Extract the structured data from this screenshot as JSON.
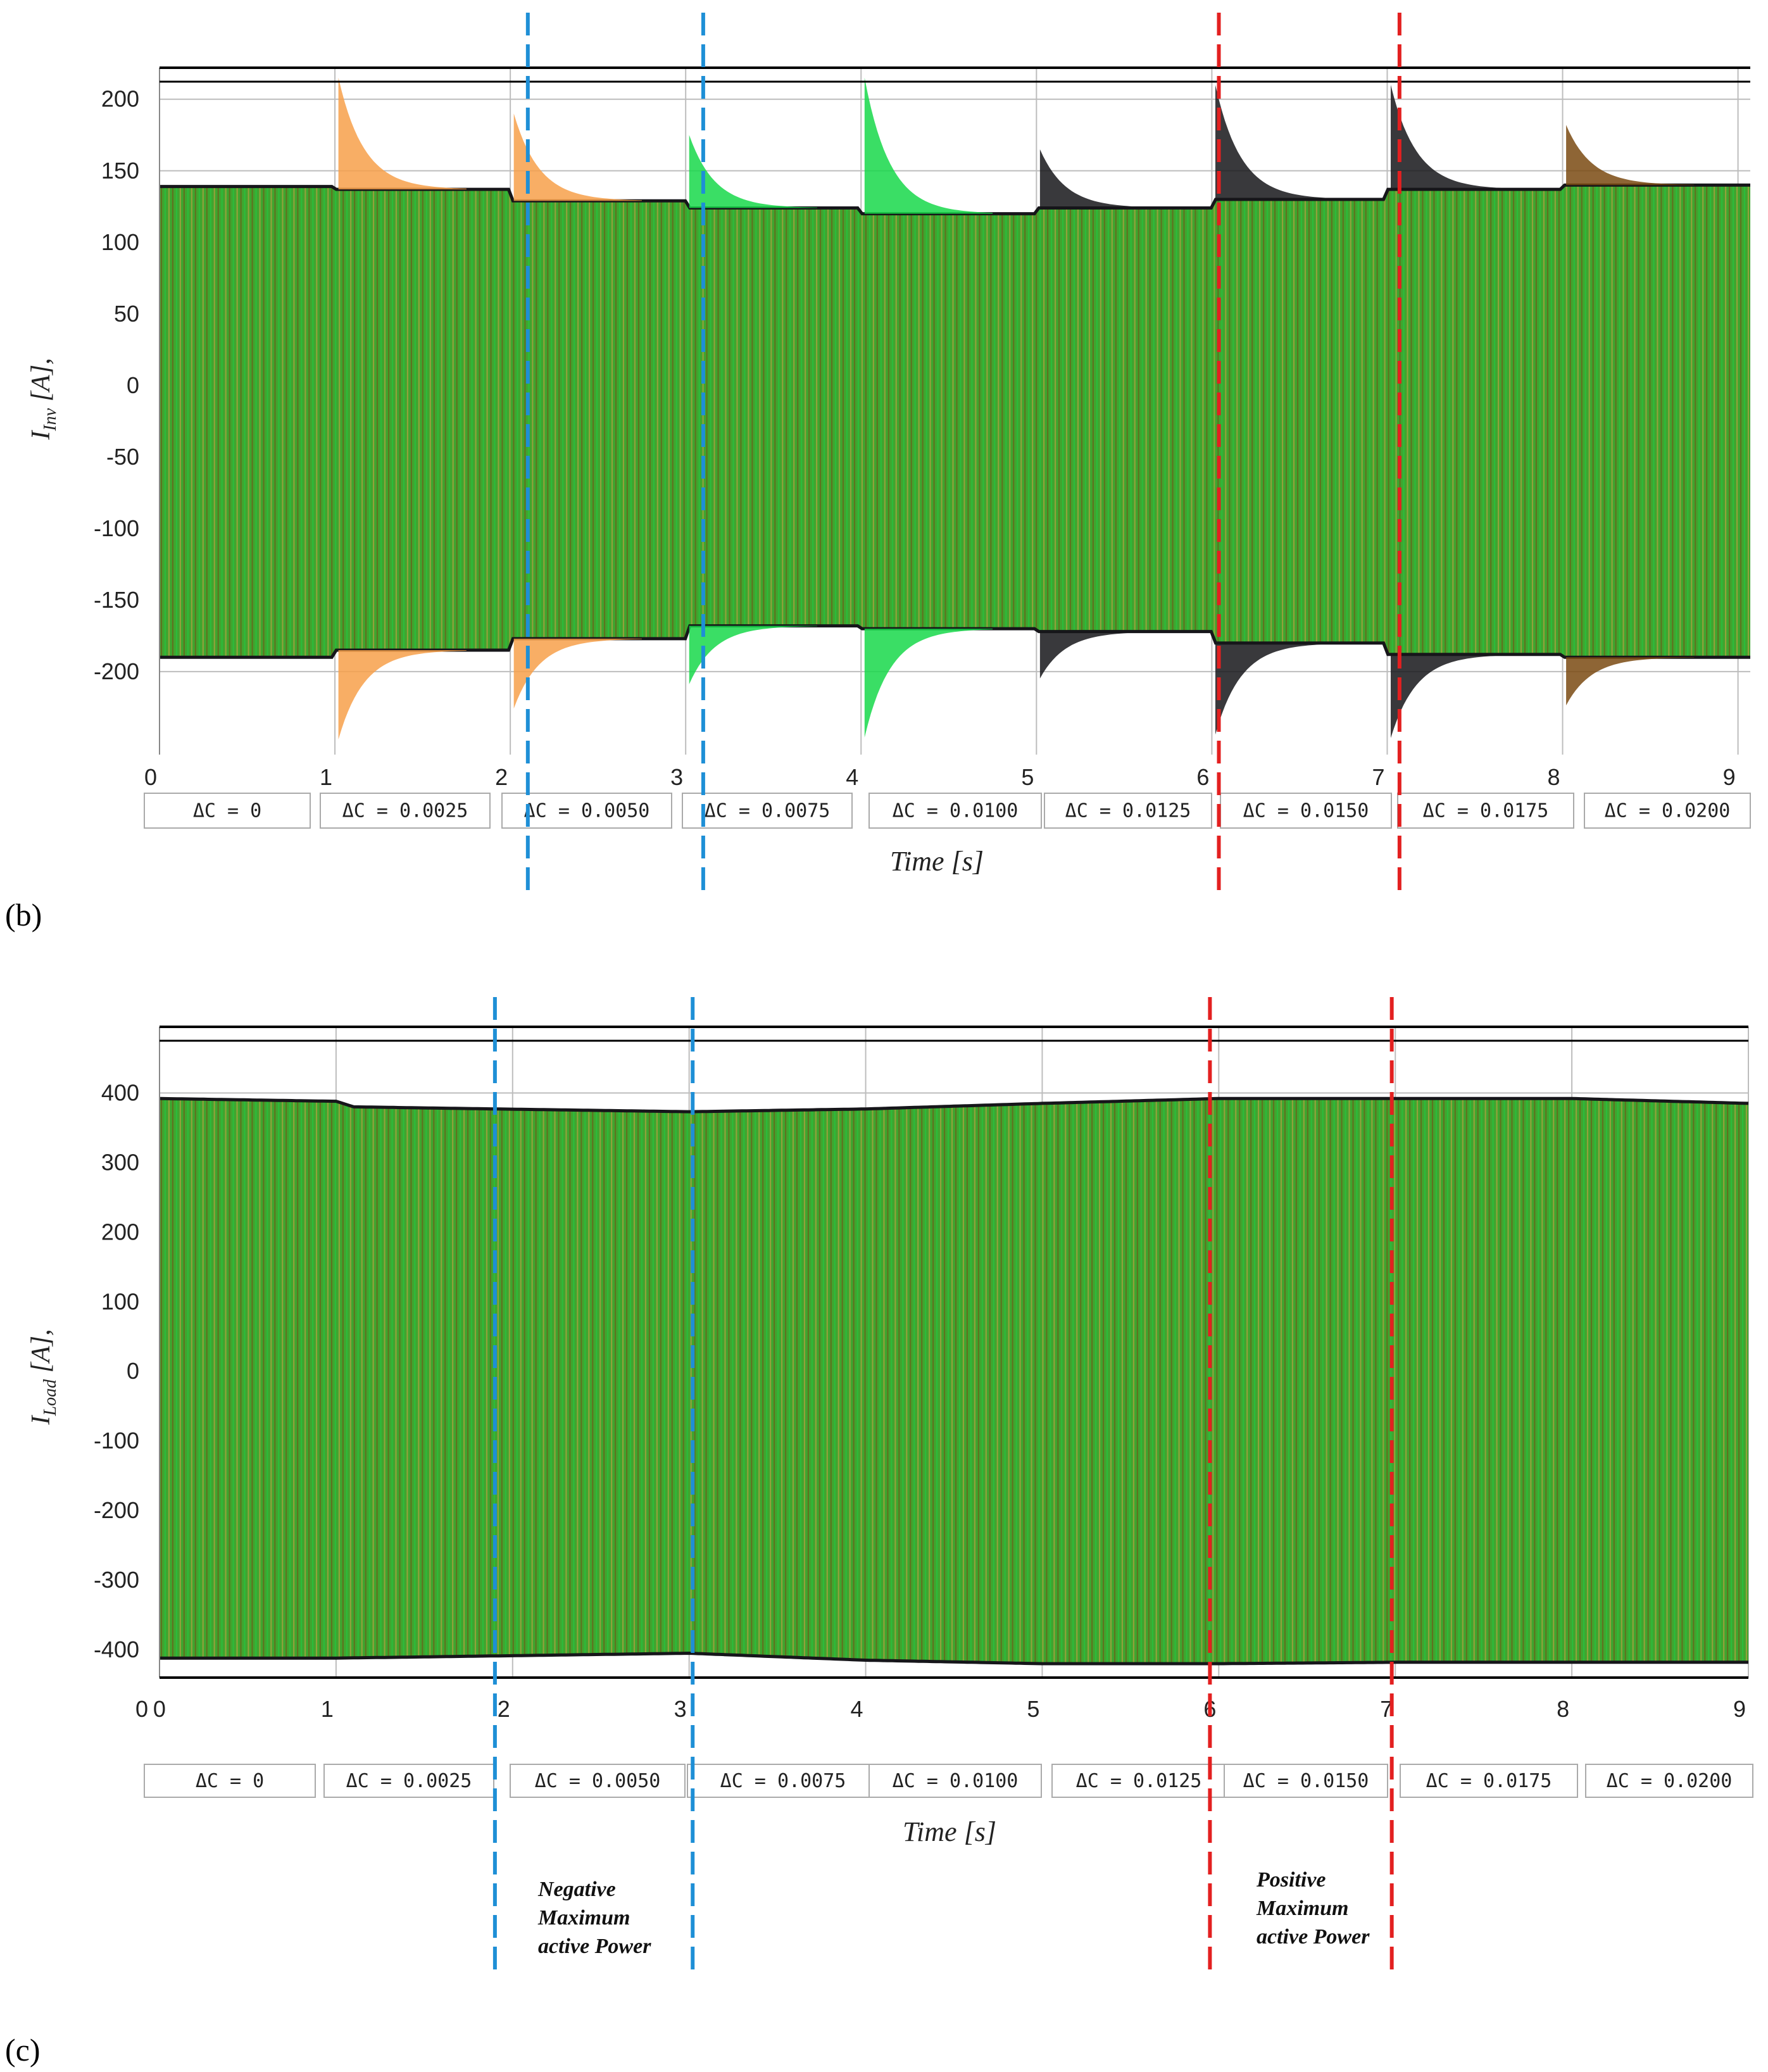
{
  "figure": {
    "panels": [
      {
        "id": "b",
        "label": "(b)"
      },
      {
        "id": "c",
        "label": "(c)"
      }
    ],
    "annotations": {
      "negative": [
        "Negative",
        "Maximum",
        "active Power"
      ],
      "positive": [
        "Positive",
        "Maximum",
        "active Power"
      ]
    },
    "colors": {
      "grid": "#bdbdbd",
      "frame": "#000000",
      "blue_dash": "#1e8fd6",
      "red_dash": "#e32020",
      "phase_a": "#f7a04a",
      "phase_b": "#16161a",
      "phase_c": "#17d84a",
      "band_mid": "#3fa52f",
      "band_dark": "#7a4a12"
    }
  },
  "chart_data": [
    {
      "type": "line",
      "panel": "(b)",
      "ylabel_main": "I",
      "ylabel_sub": "Inv",
      "ylabel_tail": " [A],",
      "xlabel": "Time [s]",
      "xlim": [
        0,
        9.07
      ],
      "ylim": [
        -258,
        222
      ],
      "x_ticks": [
        "0",
        "1",
        "2",
        "3",
        "4",
        "5",
        "6",
        "7",
        "8",
        "9"
      ],
      "y_ticks": [
        "200",
        "150",
        "100",
        "50",
        "0",
        "-50",
        "-100",
        "-150",
        "-200"
      ],
      "y_tick_values": [
        200,
        150,
        100,
        50,
        0,
        -50,
        -100,
        -150,
        -200
      ],
      "delta_c_labels": [
        "ΔC = 0",
        "ΔC = 0.0025",
        "ΔC = 0.0050",
        "ΔC = 0.0075",
        "ΔC = 0.0100",
        "ΔC = 0.0125",
        "ΔC = 0.0150",
        "ΔC = 0.0175",
        "ΔC = 0.0200"
      ],
      "segments": [
        {
          "start": 0.0,
          "end": 1.0,
          "upper": 139,
          "lower": -190,
          "transient": null
        },
        {
          "start": 1.0,
          "end": 2.0,
          "upper": 137,
          "lower": -185,
          "transient": {
            "phase": "phase_a",
            "peak": 215
          }
        },
        {
          "start": 2.0,
          "end": 3.0,
          "upper": 129,
          "lower": -177,
          "transient": {
            "phase": "phase_a",
            "peak": 190
          }
        },
        {
          "start": 3.0,
          "end": 4.0,
          "upper": 124,
          "lower": -168,
          "transient": {
            "phase": "phase_c",
            "peak": 175
          }
        },
        {
          "start": 4.0,
          "end": 5.0,
          "upper": 120,
          "lower": -170,
          "transient": {
            "phase": "phase_c",
            "peak": 215
          }
        },
        {
          "start": 5.0,
          "end": 6.0,
          "upper": 124,
          "lower": -172,
          "transient": {
            "phase": "phase_b",
            "peak": 165
          }
        },
        {
          "start": 6.0,
          "end": 7.0,
          "upper": 130,
          "lower": -180,
          "transient": {
            "phase": "phase_b",
            "peak": 210
          }
        },
        {
          "start": 7.0,
          "end": 8.0,
          "upper": 137,
          "lower": -188,
          "transient": {
            "phase": "phase_b",
            "peak": 210
          }
        },
        {
          "start": 8.0,
          "end": 9.07,
          "upper": 140,
          "lower": -190,
          "transient": {
            "phase": "band_dark",
            "peak": 182
          }
        }
      ],
      "dashed_markers": [
        {
          "x": 2.1,
          "color": "blue_dash"
        },
        {
          "x": 3.1,
          "color": "blue_dash"
        },
        {
          "x": 6.04,
          "color": "red_dash"
        },
        {
          "x": 7.07,
          "color": "red_dash"
        }
      ]
    },
    {
      "type": "line",
      "panel": "(c)",
      "ylabel_main": "I",
      "ylabel_sub": "Load",
      "ylabel_tail": " [A],",
      "xlabel": "Time [s]",
      "xlim": [
        0,
        9.0
      ],
      "ylim": [
        -440,
        495
      ],
      "x_ticks": [
        "0",
        "0",
        "1",
        "2",
        "3",
        "4",
        "5",
        "6",
        "7",
        "8",
        "9"
      ],
      "x_tick_values": [
        -0.05,
        0.05,
        1,
        2,
        3,
        4,
        5,
        6,
        7,
        8,
        9
      ],
      "y_ticks": [
        "400",
        "300",
        "200",
        "100",
        "0",
        "-100",
        "-200",
        "-300",
        "-400"
      ],
      "y_tick_values": [
        400,
        300,
        200,
        100,
        0,
        -100,
        -200,
        -300,
        -400
      ],
      "delta_c_labels": [
        "ΔC = 0",
        "ΔC = 0.0025",
        "ΔC = 0.0050",
        "ΔC = 0.0075",
        "ΔC = 0.0100",
        "ΔC = 0.0125",
        "ΔC = 0.0150",
        "ΔC = 0.0175",
        "ΔC = 0.0200"
      ],
      "envelope_upper": [
        [
          0,
          392
        ],
        [
          1,
          388
        ],
        [
          1.1,
          380
        ],
        [
          3,
          373
        ],
        [
          4,
          377
        ],
        [
          5,
          385
        ],
        [
          6,
          392
        ],
        [
          7,
          392
        ],
        [
          8,
          392
        ],
        [
          9,
          385
        ]
      ],
      "envelope_lower": [
        [
          0,
          -412
        ],
        [
          1,
          -412
        ],
        [
          3,
          -405
        ],
        [
          4,
          -415
        ],
        [
          5,
          -420
        ],
        [
          6,
          -420
        ],
        [
          7,
          -418
        ],
        [
          8,
          -418
        ],
        [
          9,
          -418
        ]
      ],
      "dashed_markers": [
        {
          "x": 1.9,
          "color": "blue_dash"
        },
        {
          "x": 3.02,
          "color": "blue_dash"
        },
        {
          "x": 5.95,
          "color": "red_dash"
        },
        {
          "x": 6.98,
          "color": "red_dash"
        }
      ]
    }
  ]
}
